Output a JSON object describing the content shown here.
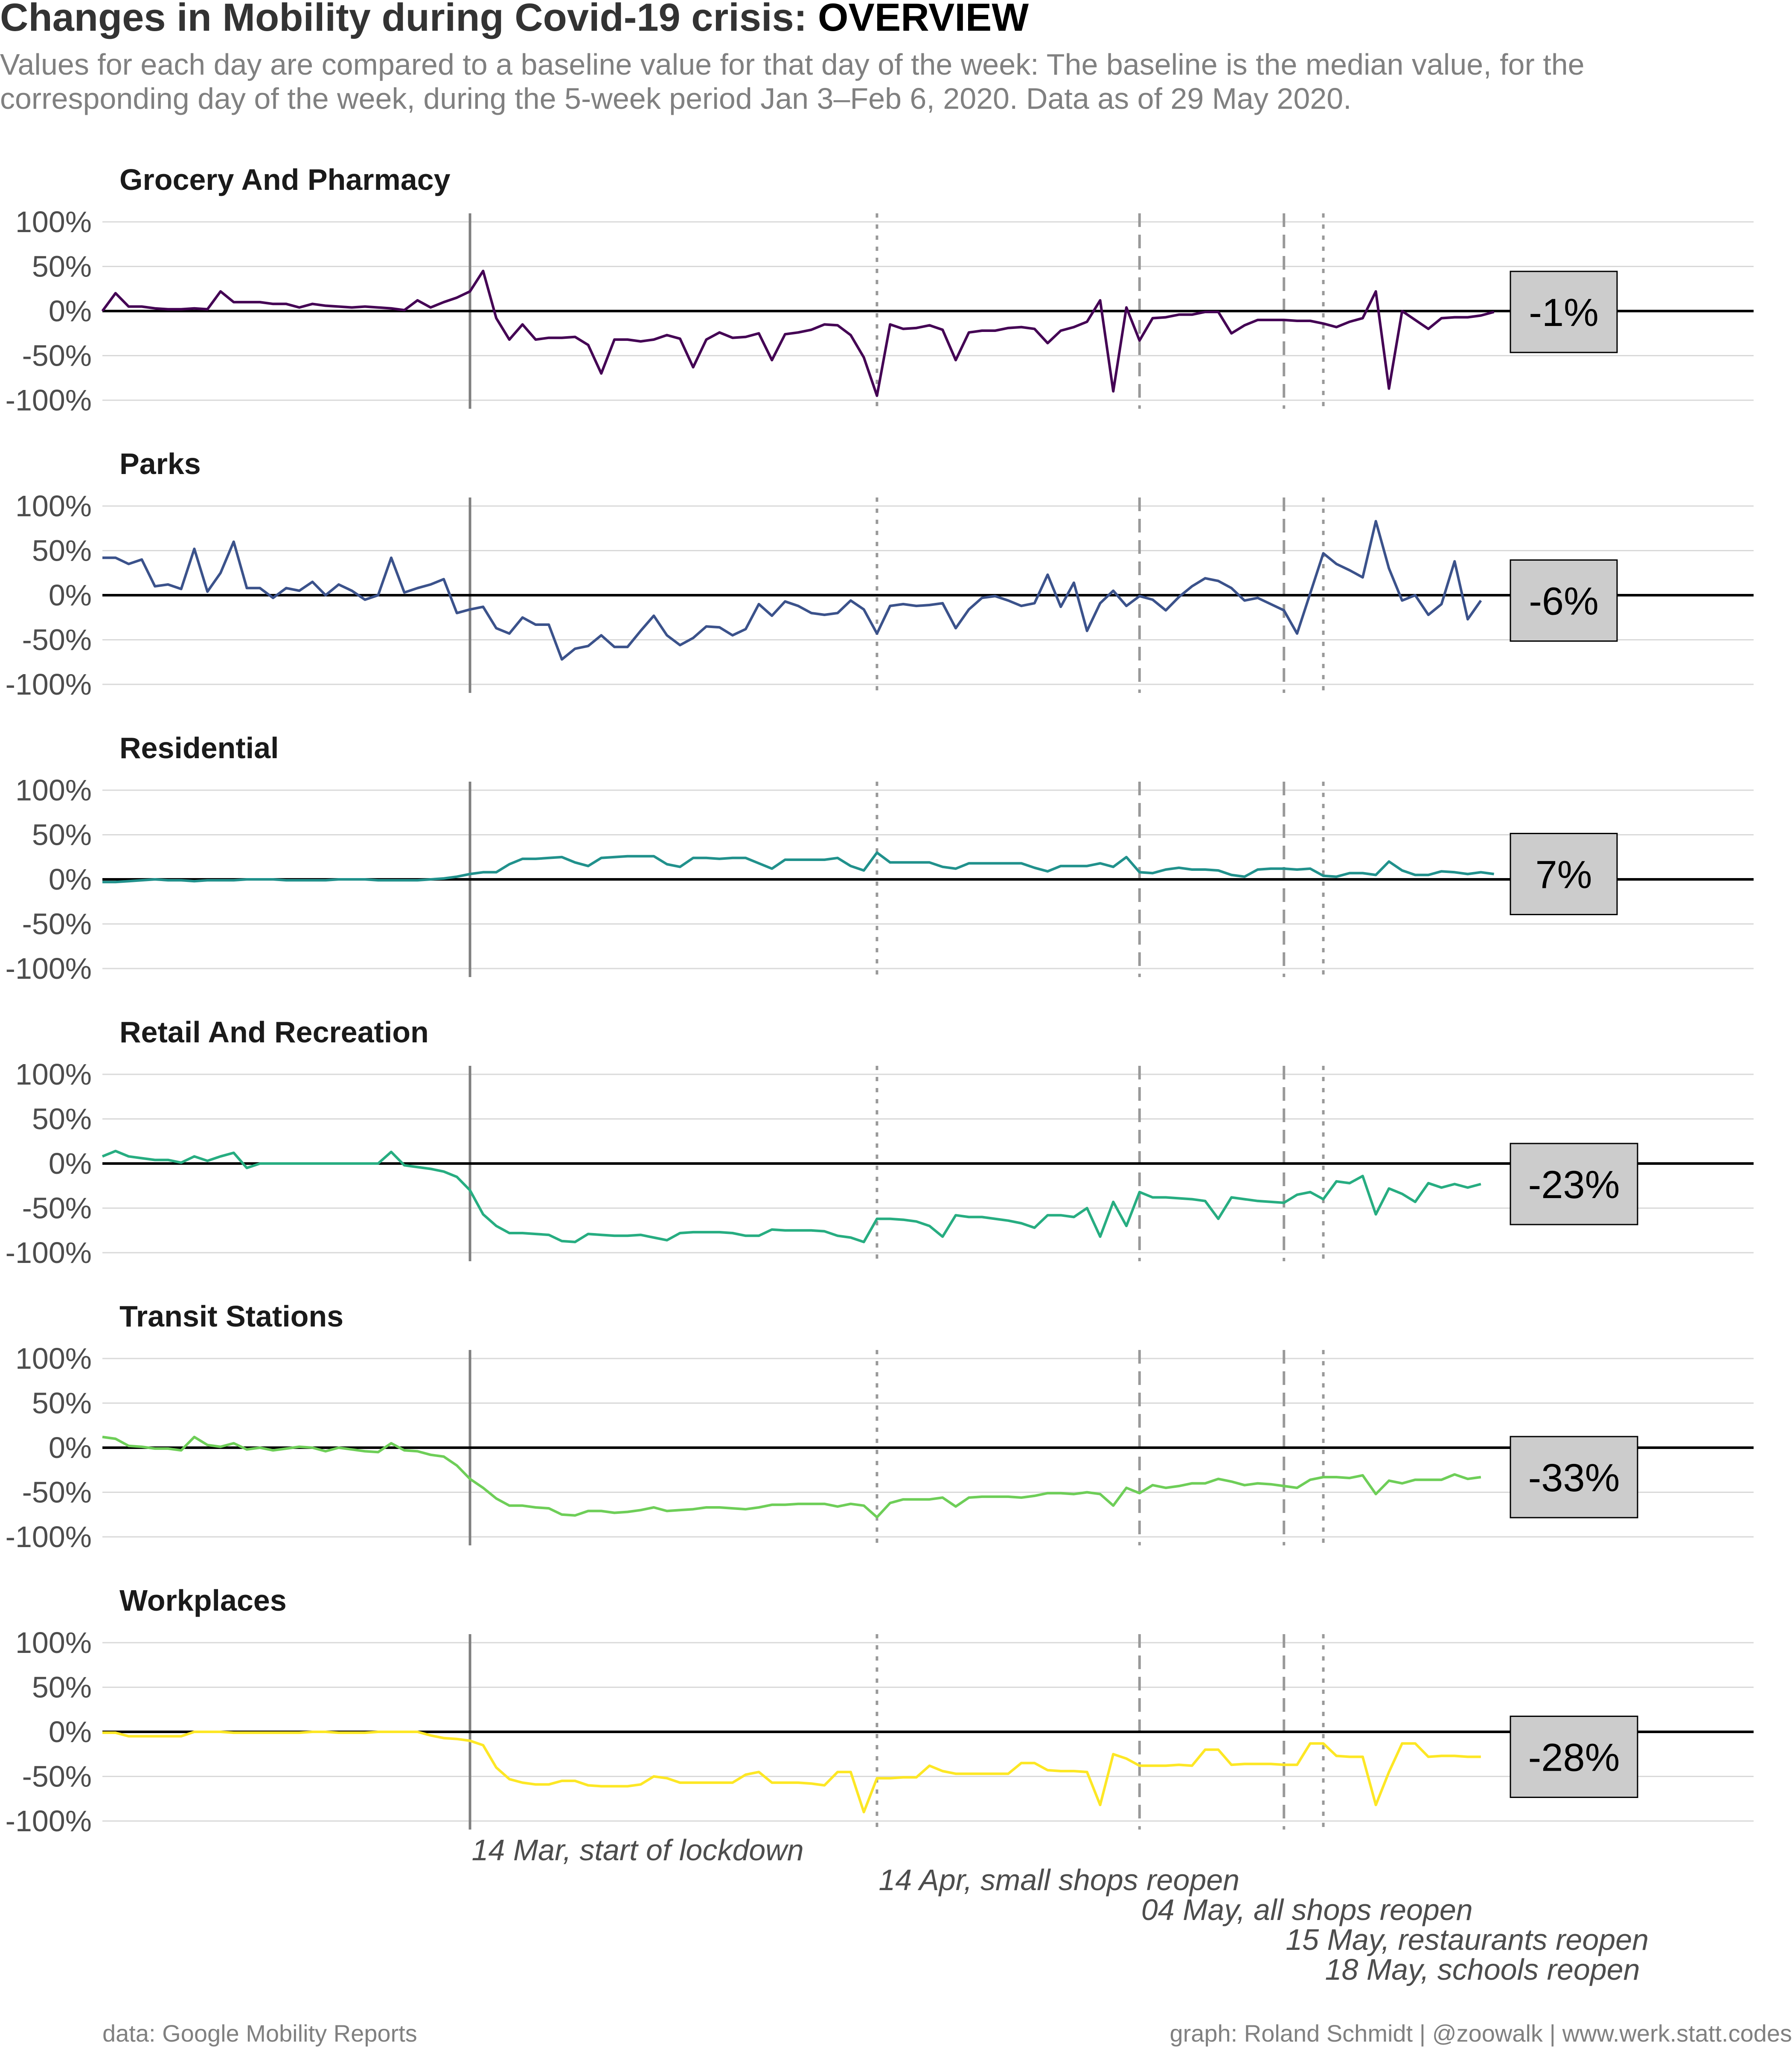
{
  "title": {
    "prefix": "Changes in Mobility during Covid-19 crisis: ",
    "emphasis": "OVERVIEW"
  },
  "subtitle": {
    "line1": "Values for each day are compared to a baseline value for that day of the week: The baseline is the median value, for the",
    "line2": "corresponding day of the week, during the 5-week period Jan 3–Feb 6, 2020. Data as of 29 May 2020."
  },
  "caption": {
    "left": "data: Google Mobility Reports",
    "right": "graph: Roland Schmidt | @zoowalk | www.werk.statt.codes"
  },
  "chart_data": {
    "type": "line",
    "x_start": "2020-02-15",
    "x_end": "2020-05-29",
    "ylim": [
      -100,
      100
    ],
    "y_ticks": [
      100,
      50,
      0,
      -50,
      -100
    ],
    "y_tick_labels": [
      "100%",
      "50%",
      "0%",
      "-50%",
      "-100%"
    ],
    "grid": true,
    "legend": "none",
    "events": [
      {
        "date": "2020-03-14",
        "label": "14 Mar, start of lockdown",
        "style": "solid"
      },
      {
        "date": "2020-04-14",
        "label": "14 Apr, small shops reopen",
        "style": "dotted"
      },
      {
        "date": "2020-05-04",
        "label": "04 May, all shops reopen",
        "style": "dashed"
      },
      {
        "date": "2020-05-15",
        "label": "15 May, restaurants reopen",
        "style": "dashed"
      },
      {
        "date": "2020-05-18",
        "label": "18 May, schools reopen",
        "style": "dotted"
      }
    ],
    "panels": [
      {
        "name": "Grocery And Pharmacy",
        "color": "#440154",
        "last_value_label": "-1%",
        "values": [
          0,
          20,
          5,
          5,
          3,
          2,
          2,
          3,
          2,
          22,
          10,
          10,
          10,
          8,
          8,
          4,
          8,
          6,
          5,
          4,
          5,
          4,
          3,
          1,
          12,
          4,
          10,
          15,
          22,
          45,
          -8,
          -32,
          -15,
          -32,
          -30,
          -30,
          -29,
          -38,
          -70,
          -32,
          -32,
          -34,
          -32,
          -27,
          -31,
          -63,
          -32,
          -24,
          -30,
          -29,
          -25,
          -55,
          -26,
          -24,
          -21,
          -15,
          -16,
          -27,
          -52,
          -95,
          -15,
          -20,
          -19,
          -16,
          -21,
          -55,
          -24,
          -22,
          -22,
          -19,
          -18,
          -20,
          -36,
          -22,
          -18,
          -12,
          12,
          -90,
          4,
          -33,
          -8,
          -7,
          -4,
          -4,
          -1,
          -1,
          -25,
          -16,
          -10,
          -10,
          -10,
          -11,
          -11,
          -14,
          -18,
          -12,
          -8,
          22,
          -87,
          0,
          -10,
          -20,
          -8,
          -7,
          -7,
          -5,
          -1
        ]
      },
      {
        "name": "Parks",
        "color": "#3b528b",
        "last_value_label": "-6%",
        "values": [
          42,
          42,
          35,
          40,
          10,
          12,
          7,
          52,
          4,
          25,
          60,
          8,
          8,
          -3,
          8,
          5,
          15,
          0,
          12,
          5,
          -5,
          0,
          42,
          3,
          8,
          12,
          18,
          -20,
          -16,
          -13,
          -37,
          -43,
          -25,
          -33,
          -33,
          -72,
          -60,
          -57,
          -45,
          -58,
          -58,
          -40,
          -23,
          -45,
          -56,
          -48,
          -35,
          -36,
          -45,
          -38,
          -10,
          -23,
          -7,
          -12,
          -20,
          -22,
          -20,
          -6,
          -16,
          -43,
          -12,
          -10,
          -12,
          -11,
          -9,
          -37,
          -16,
          -3,
          -1,
          -6,
          -12,
          -9,
          23,
          -13,
          14,
          -40,
          -9,
          5,
          -12,
          -1,
          -5,
          -17,
          -2,
          10,
          19,
          16,
          8,
          -6,
          -3,
          -10,
          -17,
          -43,
          2,
          47,
          35,
          28,
          20,
          83,
          30,
          -6,
          0,
          -22,
          -10,
          38,
          -27,
          -6
        ]
      },
      {
        "name": "Residential",
        "color": "#21918c",
        "last_value_label": "7%",
        "values": [
          -3,
          -3,
          -2,
          -1,
          0,
          -1,
          -1,
          -2,
          -1,
          -1,
          -1,
          0,
          0,
          0,
          -1,
          -1,
          -1,
          -1,
          0,
          0,
          0,
          -1,
          -1,
          -1,
          -1,
          0,
          1,
          3,
          6,
          8,
          8,
          17,
          23,
          23,
          24,
          25,
          19,
          15,
          24,
          25,
          26,
          26,
          26,
          17,
          14,
          24,
          24,
          23,
          24,
          24,
          18,
          12,
          22,
          22,
          22,
          22,
          24,
          15,
          10,
          30,
          19,
          19,
          19,
          19,
          14,
          12,
          18,
          18,
          18,
          18,
          18,
          13,
          9,
          15,
          15,
          15,
          18,
          14,
          25,
          8,
          7,
          11,
          13,
          11,
          11,
          10,
          5,
          3,
          11,
          12,
          12,
          11,
          12,
          4,
          3,
          7,
          7,
          5,
          20,
          10,
          5,
          5,
          9,
          8,
          6,
          8,
          6
        ]
      },
      {
        "name": "Retail And Recreation",
        "color": "#27ad81",
        "last_value_label": "-23%",
        "values": [
          8,
          14,
          8,
          6,
          4,
          4,
          1,
          8,
          3,
          8,
          12,
          -5,
          0,
          0,
          0,
          0,
          0,
          0,
          0,
          0,
          0,
          0,
          13,
          -2,
          -4,
          -6,
          -9,
          -15,
          -30,
          -57,
          -70,
          -78,
          -78,
          -79,
          -80,
          -87,
          -88,
          -79,
          -80,
          -81,
          -81,
          -80,
          -83,
          -86,
          -78,
          -77,
          -77,
          -77,
          -78,
          -81,
          -81,
          -74,
          -75,
          -75,
          -75,
          -76,
          -81,
          -83,
          -88,
          -62,
          -62,
          -63,
          -65,
          -70,
          -82,
          -58,
          -60,
          -60,
          -62,
          -64,
          -67,
          -72,
          -58,
          -58,
          -60,
          -50,
          -82,
          -43,
          -70,
          -32,
          -38,
          -38,
          -39,
          -40,
          -42,
          -62,
          -38,
          -40,
          -42,
          -43,
          -44,
          -35,
          -32,
          -40,
          -20,
          -22,
          -14,
          -57,
          -28,
          -34,
          -43,
          -22,
          -27,
          -23,
          -27,
          -23
        ]
      },
      {
        "name": "Transit Stations",
        "color": "#6ece58",
        "last_value_label": "-33%",
        "values": [
          12,
          10,
          2,
          1,
          -1,
          -1,
          -3,
          12,
          3,
          1,
          5,
          -2,
          0,
          -3,
          -1,
          1,
          0,
          -4,
          0,
          -2,
          -4,
          -5,
          5,
          -3,
          -4,
          -8,
          -10,
          -20,
          -35,
          -45,
          -57,
          -65,
          -65,
          -67,
          -68,
          -75,
          -76,
          -71,
          -71,
          -73,
          -72,
          -70,
          -67,
          -71,
          -70,
          -69,
          -67,
          -67,
          -68,
          -69,
          -67,
          -64,
          -64,
          -63,
          -63,
          -63,
          -66,
          -63,
          -65,
          -78,
          -62,
          -58,
          -58,
          -58,
          -56,
          -66,
          -56,
          -55,
          -55,
          -55,
          -56,
          -54,
          -51,
          -51,
          -52,
          -50,
          -52,
          -65,
          -45,
          -51,
          -42,
          -45,
          -43,
          -40,
          -40,
          -35,
          -38,
          -42,
          -40,
          -41,
          -43,
          -45,
          -36,
          -33,
          -33,
          -34,
          -31,
          -52,
          -37,
          -40,
          -36,
          -36,
          -36,
          -30,
          -35,
          -33
        ]
      },
      {
        "name": "Workplaces",
        "color": "#fde725",
        "last_value_label": "-28%",
        "values": [
          -1,
          -1,
          -5,
          -5,
          -5,
          -5,
          -5,
          0,
          0,
          0,
          -1,
          -1,
          -1,
          -1,
          -1,
          -1,
          0,
          0,
          -1,
          -1,
          -1,
          0,
          0,
          0,
          0,
          -4,
          -7,
          -8,
          -10,
          -15,
          -40,
          -53,
          -57,
          -59,
          -59,
          -55,
          -55,
          -60,
          -61,
          -61,
          -61,
          -59,
          -50,
          -52,
          -57,
          -57,
          -57,
          -57,
          -57,
          -48,
          -45,
          -57,
          -57,
          -57,
          -58,
          -60,
          -45,
          -45,
          -90,
          -52,
          -52,
          -51,
          -51,
          -38,
          -44,
          -47,
          -47,
          -47,
          -47,
          -47,
          -35,
          -35,
          -43,
          -44,
          -44,
          -45,
          -82,
          -25,
          -30,
          -38,
          -38,
          -38,
          -37,
          -38,
          -20,
          -20,
          -37,
          -36,
          -36,
          -36,
          -37,
          -37,
          -13,
          -13,
          -27,
          -28,
          -28,
          -82,
          -45,
          -13,
          -13,
          -28,
          -27,
          -27,
          -28,
          -28
        ]
      }
    ]
  }
}
